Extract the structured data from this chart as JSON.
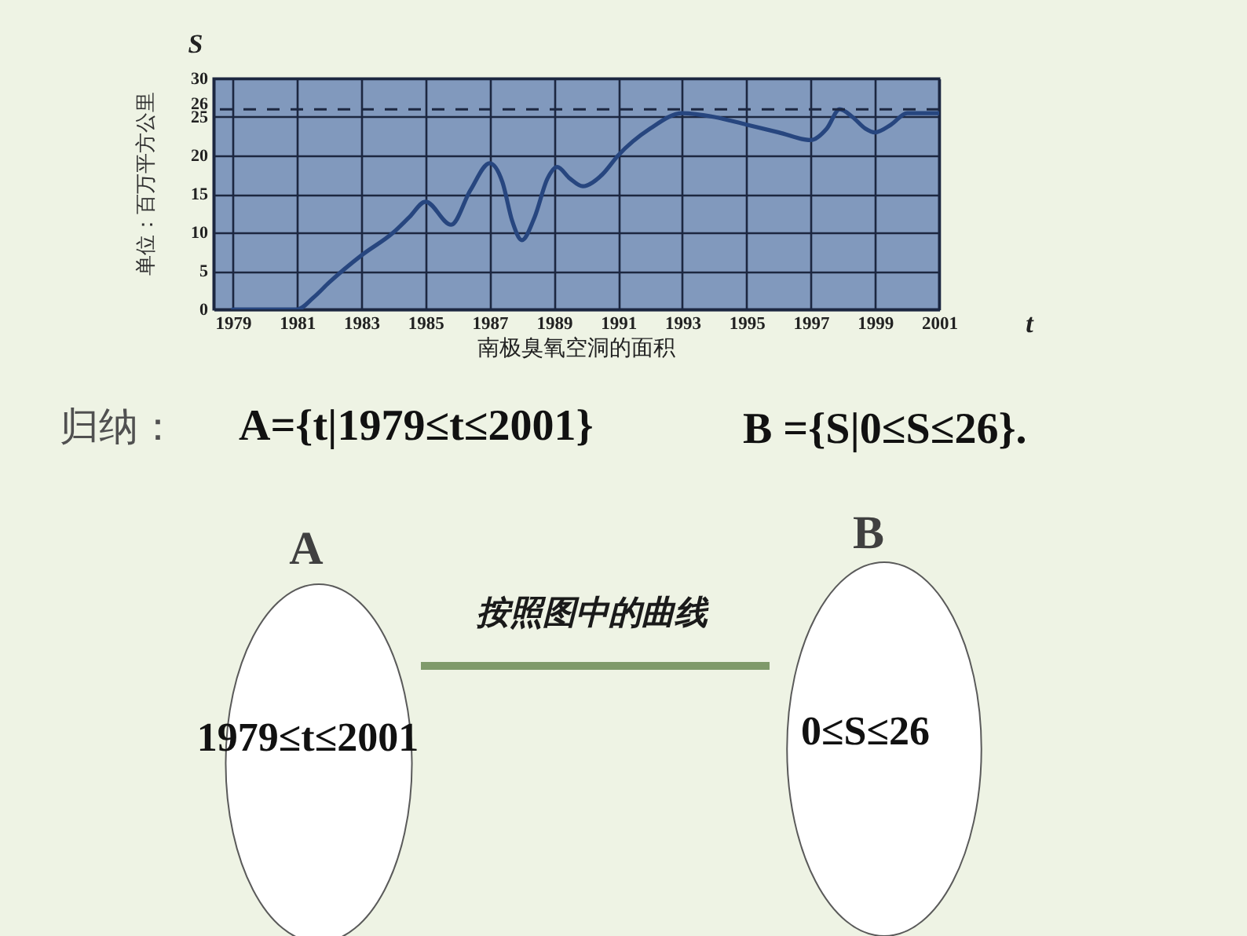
{
  "chart_data": {
    "type": "line",
    "title": "南极臭氧空洞的面积",
    "xlabel": "t",
    "ylabel": "S",
    "x": [
      1979,
      1980,
      1981,
      1981.5,
      1982,
      1983,
      1984,
      1984.5,
      1985,
      1985.8,
      1986.4,
      1987,
      1987.4,
      1987.7,
      1988,
      1988.4,
      1988.8,
      1989.1,
      1989.5,
      1989.9,
      1990.5,
      1991,
      1992,
      1993,
      1994,
      1995,
      1996,
      1997,
      1997.5,
      1997.9,
      1998.3,
      1998.7,
      1999,
      1999.5,
      2000,
      2001
    ],
    "series": [
      {
        "color": "#27467f",
        "values": [
          0,
          0,
          0,
          1.5,
          3.5,
          7,
          10,
          12,
          14,
          11,
          15.5,
          19,
          16.5,
          11.5,
          9,
          12,
          17,
          18.5,
          17,
          16,
          17.5,
          20,
          23.5,
          25.5,
          25,
          24,
          23,
          22,
          23.5,
          26,
          25,
          23.5,
          23,
          24,
          25.5,
          25.5
        ]
      }
    ],
    "xlim": [
      1978.4,
      2001
    ],
    "xticks": [
      1979,
      1981,
      1983,
      1985,
      1987,
      1989,
      1991,
      1993,
      1995,
      1997,
      1999,
      2001
    ],
    "ylim": [
      0,
      30
    ],
    "yticks": [
      0,
      5,
      10,
      15,
      20,
      25,
      26,
      30
    ],
    "ref_lines": [
      {
        "axis": "y",
        "value": 26,
        "line_style": "dashed",
        "color": "#1c2740"
      }
    ],
    "grid": true,
    "line_style": "solid",
    "annotations": [
      "单位：百万平方公里",
      "归纳：",
      "A={t|1979≤t≤2001}",
      "B ={S|0≤S≤26}.",
      "A",
      "B",
      "按照图中的曲线",
      "1979≤t≤2001",
      "0≤S≤26"
    ]
  }
}
